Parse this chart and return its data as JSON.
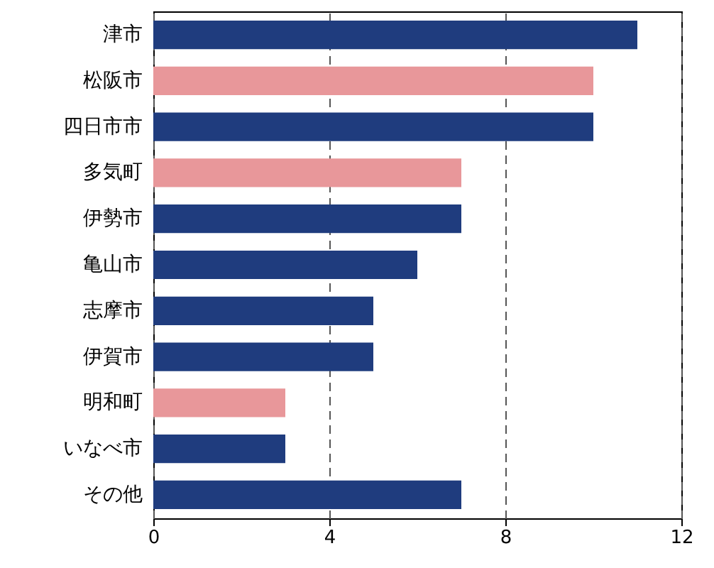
{
  "chart_data": {
    "type": "bar",
    "orientation": "horizontal",
    "categories": [
      "津市",
      "松阪市",
      "四日市市",
      "多気町",
      "伊勢市",
      "亀山市",
      "志摩市",
      "伊賀市",
      "明和町",
      "いなべ市",
      "その他"
    ],
    "values": [
      11,
      10,
      10,
      7,
      7,
      6,
      5,
      5,
      3,
      3,
      7
    ],
    "colors": [
      "#1f3c7e",
      "#e8979a",
      "#1f3c7e",
      "#e8979a",
      "#1f3c7e",
      "#1f3c7e",
      "#1f3c7e",
      "#1f3c7e",
      "#e8979a",
      "#1f3c7e",
      "#1f3c7e"
    ],
    "xlim": [
      0,
      12
    ],
    "xticks": [
      0,
      4,
      8,
      12
    ],
    "grid": "x"
  }
}
